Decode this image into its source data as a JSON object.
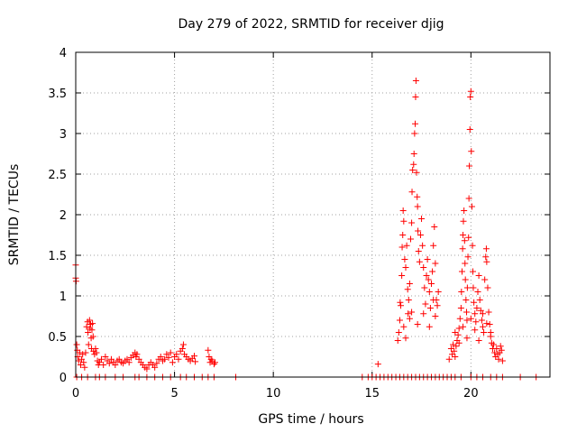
{
  "chart_data": {
    "type": "scatter",
    "title": "Day 279 of 2022, SRMTID for receiver djig",
    "xlabel": "GPS time / hours",
    "ylabel": "SRMTID / TECUs",
    "xlim": [
      0,
      24
    ],
    "ylim": [
      0,
      4
    ],
    "xticks": [
      0,
      5,
      10,
      15,
      20
    ],
    "xtick_labels": [
      "0",
      "5",
      "10",
      "15",
      "20"
    ],
    "yticks": [
      0,
      0.5,
      1,
      1.5,
      2,
      2.5,
      3,
      3.5,
      4
    ],
    "ytick_labels": [
      "0",
      "0.5",
      "1",
      "1.5",
      "2",
      "2.5",
      "3",
      "3.5",
      "4"
    ],
    "grid": true,
    "marker": "+",
    "series": [
      {
        "name": "SRMTID",
        "color": "#ff0000",
        "points": [
          [
            0.0,
            1.38
          ],
          [
            0.0,
            1.22
          ],
          [
            0.02,
            1.18
          ],
          [
            0.05,
            0.4
          ],
          [
            0.08,
            0.33
          ],
          [
            0.1,
            0.25
          ],
          [
            0.15,
            0.2
          ],
          [
            0.2,
            0.3
          ],
          [
            0.25,
            0.15
          ],
          [
            0.3,
            0.22
          ],
          [
            0.35,
            0.28
          ],
          [
            0.4,
            0.18
          ],
          [
            0.45,
            0.12
          ],
          [
            0.5,
            0.3
          ],
          [
            0.55,
            0.62
          ],
          [
            0.6,
            0.68
          ],
          [
            0.62,
            0.55
          ],
          [
            0.65,
            0.4
          ],
          [
            0.7,
            0.7
          ],
          [
            0.72,
            0.6
          ],
          [
            0.75,
            0.65
          ],
          [
            0.78,
            0.48
          ],
          [
            0.8,
            0.35
          ],
          [
            0.82,
            0.58
          ],
          [
            0.85,
            0.66
          ],
          [
            0.88,
            0.5
          ],
          [
            0.9,
            0.32
          ],
          [
            0.95,
            0.28
          ],
          [
            1.0,
            0.35
          ],
          [
            1.05,
            0.3
          ],
          [
            1.1,
            0.2
          ],
          [
            1.15,
            0.15
          ],
          [
            1.2,
            0.18
          ],
          [
            1.3,
            0.22
          ],
          [
            1.4,
            0.15
          ],
          [
            1.5,
            0.25
          ],
          [
            1.6,
            0.2
          ],
          [
            1.7,
            0.17
          ],
          [
            1.8,
            0.22
          ],
          [
            1.9,
            0.18
          ],
          [
            2.0,
            0.15
          ],
          [
            2.1,
            0.2
          ],
          [
            2.2,
            0.22
          ],
          [
            2.3,
            0.18
          ],
          [
            2.4,
            0.17
          ],
          [
            2.5,
            0.2
          ],
          [
            2.6,
            0.22
          ],
          [
            2.7,
            0.18
          ],
          [
            2.8,
            0.24
          ],
          [
            2.9,
            0.27
          ],
          [
            3.0,
            0.3
          ],
          [
            3.05,
            0.25
          ],
          [
            3.1,
            0.28
          ],
          [
            3.2,
            0.22
          ],
          [
            3.3,
            0.18
          ],
          [
            3.4,
            0.15
          ],
          [
            3.5,
            0.12
          ],
          [
            3.6,
            0.1
          ],
          [
            3.7,
            0.15
          ],
          [
            3.8,
            0.18
          ],
          [
            3.9,
            0.15
          ],
          [
            4.0,
            0.12
          ],
          [
            4.1,
            0.17
          ],
          [
            4.2,
            0.22
          ],
          [
            4.3,
            0.25
          ],
          [
            4.4,
            0.2
          ],
          [
            4.5,
            0.22
          ],
          [
            4.6,
            0.28
          ],
          [
            4.7,
            0.24
          ],
          [
            4.8,
            0.3
          ],
          [
            4.9,
            0.18
          ],
          [
            5.0,
            0.25
          ],
          [
            5.1,
            0.28
          ],
          [
            5.2,
            0.22
          ],
          [
            5.3,
            0.32
          ],
          [
            5.4,
            0.35
          ],
          [
            5.45,
            0.4
          ],
          [
            5.5,
            0.28
          ],
          [
            5.6,
            0.25
          ],
          [
            5.7,
            0.22
          ],
          [
            5.8,
            0.2
          ],
          [
            5.9,
            0.23
          ],
          [
            6.0,
            0.26
          ],
          [
            6.05,
            0.19
          ],
          [
            6.7,
            0.33
          ],
          [
            6.75,
            0.25
          ],
          [
            6.8,
            0.18
          ],
          [
            6.85,
            0.22
          ],
          [
            6.9,
            0.2
          ],
          [
            7.0,
            0.16
          ],
          [
            7.05,
            0.18
          ],
          [
            0.05,
            0.0
          ],
          [
            0.3,
            0.0
          ],
          [
            0.6,
            0.0
          ],
          [
            1.0,
            0.0
          ],
          [
            1.2,
            0.0
          ],
          [
            1.5,
            0.0
          ],
          [
            2.0,
            0.0
          ],
          [
            2.4,
            0.0
          ],
          [
            3.0,
            0.0
          ],
          [
            3.2,
            0.0
          ],
          [
            3.6,
            0.0
          ],
          [
            4.0,
            0.0
          ],
          [
            4.4,
            0.0
          ],
          [
            4.8,
            0.0
          ],
          [
            5.3,
            0.0
          ],
          [
            5.6,
            0.0
          ],
          [
            6.0,
            0.0
          ],
          [
            6.4,
            0.0
          ],
          [
            6.7,
            0.0
          ],
          [
            7.0,
            0.0
          ],
          [
            8.1,
            0.0
          ],
          [
            14.5,
            0.0
          ],
          [
            14.8,
            0.0
          ],
          [
            15.0,
            0.0
          ],
          [
            15.2,
            0.0
          ],
          [
            15.4,
            0.0
          ],
          [
            15.6,
            0.0
          ],
          [
            15.8,
            0.0
          ],
          [
            16.0,
            0.0
          ],
          [
            16.2,
            0.0
          ],
          [
            16.4,
            0.0
          ],
          [
            16.6,
            0.0
          ],
          [
            16.8,
            0.0
          ],
          [
            17.0,
            0.0
          ],
          [
            17.2,
            0.0
          ],
          [
            17.4,
            0.0
          ],
          [
            17.6,
            0.0
          ],
          [
            17.8,
            0.0
          ],
          [
            18.0,
            0.0
          ],
          [
            18.2,
            0.0
          ],
          [
            18.4,
            0.0
          ],
          [
            18.6,
            0.0
          ],
          [
            18.8,
            0.0
          ],
          [
            19.0,
            0.0
          ],
          [
            19.2,
            0.0
          ],
          [
            19.5,
            0.0
          ],
          [
            20.0,
            0.0
          ],
          [
            20.3,
            0.0
          ],
          [
            20.6,
            0.0
          ],
          [
            21.0,
            0.0
          ],
          [
            21.3,
            0.0
          ],
          [
            21.6,
            0.0
          ],
          [
            22.5,
            0.0
          ],
          [
            23.3,
            0.0
          ],
          [
            15.3,
            0.16
          ],
          [
            16.3,
            0.45
          ],
          [
            16.35,
            0.55
          ],
          [
            16.4,
            0.7
          ],
          [
            16.42,
            0.92
          ],
          [
            16.45,
            0.88
          ],
          [
            16.5,
            1.25
          ],
          [
            16.52,
            1.6
          ],
          [
            16.55,
            1.75
          ],
          [
            16.57,
            2.05
          ],
          [
            16.6,
            1.92
          ],
          [
            16.65,
            1.45
          ],
          [
            16.7,
            1.35
          ],
          [
            16.75,
            1.62
          ],
          [
            16.8,
            1.08
          ],
          [
            16.82,
            0.78
          ],
          [
            16.85,
            0.95
          ],
          [
            16.9,
            1.15
          ],
          [
            16.95,
            1.7
          ],
          [
            17.0,
            1.9
          ],
          [
            17.02,
            2.28
          ],
          [
            17.05,
            2.55
          ],
          [
            17.1,
            2.62
          ],
          [
            17.12,
            2.75
          ],
          [
            17.15,
            3.0
          ],
          [
            17.18,
            3.12
          ],
          [
            17.2,
            3.45
          ],
          [
            17.22,
            3.65
          ],
          [
            17.25,
            2.52
          ],
          [
            17.28,
            2.22
          ],
          [
            17.3,
            2.1
          ],
          [
            17.32,
            1.8
          ],
          [
            17.35,
            1.55
          ],
          [
            17.4,
            1.42
          ],
          [
            17.45,
            1.75
          ],
          [
            17.5,
            1.95
          ],
          [
            17.55,
            1.62
          ],
          [
            17.6,
            1.35
          ],
          [
            17.65,
            1.1
          ],
          [
            17.7,
            0.9
          ],
          [
            17.75,
            1.25
          ],
          [
            17.8,
            1.45
          ],
          [
            17.85,
            1.2
          ],
          [
            17.9,
            1.05
          ],
          [
            17.95,
            0.85
          ],
          [
            18.0,
            1.15
          ],
          [
            18.05,
            1.3
          ],
          [
            18.1,
            1.62
          ],
          [
            18.15,
            1.85
          ],
          [
            18.2,
            1.4
          ],
          [
            18.25,
            0.95
          ],
          [
            18.3,
            0.88
          ],
          [
            18.35,
            1.05
          ],
          [
            16.6,
            0.62
          ],
          [
            16.7,
            0.48
          ],
          [
            16.9,
            0.72
          ],
          [
            17.0,
            0.8
          ],
          [
            17.3,
            0.65
          ],
          [
            17.6,
            0.78
          ],
          [
            17.9,
            0.62
          ],
          [
            18.1,
            0.95
          ],
          [
            18.2,
            0.75
          ],
          [
            18.9,
            0.22
          ],
          [
            19.0,
            0.35
          ],
          [
            19.05,
            0.28
          ],
          [
            19.1,
            0.4
          ],
          [
            19.15,
            0.32
          ],
          [
            19.2,
            0.25
          ],
          [
            19.25,
            0.38
          ],
          [
            19.3,
            0.45
          ],
          [
            19.35,
            0.52
          ],
          [
            19.4,
            0.6
          ],
          [
            19.45,
            0.72
          ],
          [
            19.5,
            0.85
          ],
          [
            19.52,
            1.05
          ],
          [
            19.55,
            1.3
          ],
          [
            19.58,
            1.58
          ],
          [
            19.6,
            1.75
          ],
          [
            19.62,
            1.92
          ],
          [
            19.65,
            2.05
          ],
          [
            19.68,
            1.68
          ],
          [
            19.7,
            1.4
          ],
          [
            19.72,
            1.2
          ],
          [
            19.75,
            0.95
          ],
          [
            19.78,
            0.8
          ],
          [
            19.8,
            0.7
          ],
          [
            19.82,
            1.1
          ],
          [
            19.85,
            1.48
          ],
          [
            19.88,
            1.72
          ],
          [
            19.9,
            2.2
          ],
          [
            19.92,
            2.6
          ],
          [
            19.95,
            3.05
          ],
          [
            19.97,
            3.45
          ],
          [
            20.0,
            3.52
          ],
          [
            20.02,
            2.78
          ],
          [
            20.05,
            2.1
          ],
          [
            20.08,
            1.62
          ],
          [
            20.1,
            1.3
          ],
          [
            20.12,
            1.1
          ],
          [
            20.15,
            0.92
          ],
          [
            20.2,
            0.78
          ],
          [
            20.25,
            0.68
          ],
          [
            20.3,
            0.85
          ],
          [
            20.35,
            1.05
          ],
          [
            20.4,
            1.25
          ],
          [
            20.45,
            0.95
          ],
          [
            20.5,
            0.82
          ],
          [
            20.55,
            0.7
          ],
          [
            20.6,
            0.62
          ],
          [
            20.65,
            0.55
          ],
          [
            20.7,
            1.2
          ],
          [
            20.75,
            1.48
          ],
          [
            20.78,
            1.58
          ],
          [
            20.8,
            1.42
          ],
          [
            20.85,
            1.1
          ],
          [
            20.9,
            0.8
          ],
          [
            20.95,
            0.65
          ],
          [
            21.0,
            0.5
          ],
          [
            21.05,
            0.42
          ],
          [
            21.1,
            0.35
          ],
          [
            21.15,
            0.4
          ],
          [
            21.2,
            0.3
          ],
          [
            21.25,
            0.25
          ],
          [
            21.3,
            0.35
          ],
          [
            21.35,
            0.28
          ],
          [
            21.4,
            0.22
          ],
          [
            21.45,
            0.3
          ],
          [
            21.5,
            0.38
          ],
          [
            21.55,
            0.33
          ],
          [
            21.6,
            0.2
          ],
          [
            19.2,
            0.55
          ],
          [
            19.4,
            0.42
          ],
          [
            19.6,
            0.62
          ],
          [
            19.8,
            0.48
          ],
          [
            20.0,
            0.72
          ],
          [
            20.2,
            0.58
          ],
          [
            20.4,
            0.45
          ],
          [
            20.6,
            0.78
          ],
          [
            20.8,
            0.66
          ],
          [
            21.0,
            0.55
          ]
        ]
      }
    ]
  }
}
